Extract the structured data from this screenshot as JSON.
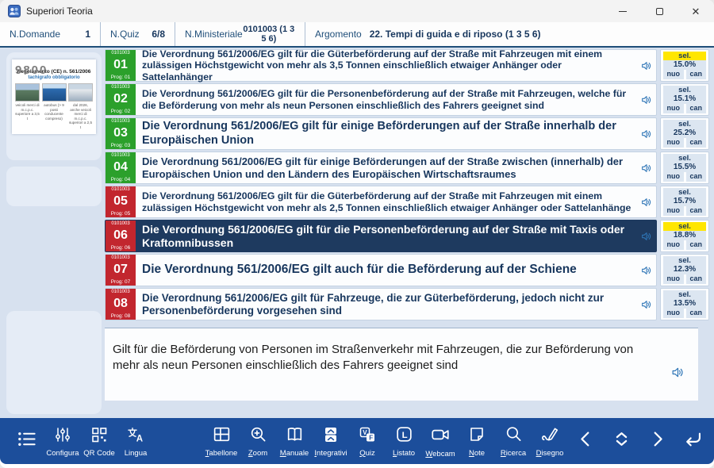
{
  "window": {
    "title": "Superiori Teoria",
    "controls": [
      "minimize",
      "maximize",
      "close"
    ]
  },
  "header": {
    "fields": [
      {
        "label": "N.Domande",
        "value": "1"
      },
      {
        "label": "N.Quiz",
        "value": "6/8"
      },
      {
        "label": "N.Ministeriale",
        "value": "0101003 (1 3 5 6)"
      },
      {
        "label": "Argomento",
        "value": "22. Tempi di guida e di riposo (1 3 5 6)"
      }
    ]
  },
  "sidebar": {
    "image_card": {
      "watermark": "9800",
      "title": "Regolamento (CE) n. 561/2006",
      "subtitle": "tachigrafo obbligatorio",
      "photos": [
        {
          "caption": "veicoli merci di m.c.p.c. superiore a 3,5 t"
        },
        {
          "caption": "autobus (> 9 posti conducente compreso)"
        },
        {
          "caption": "dal 2026, anche veicoli merci di m.c.p.c. superiori a 2,5 t"
        }
      ]
    }
  },
  "colors": {
    "correct_green": "#2ba02b",
    "wrong_red": "#c2262e",
    "selected_row_navy": "#1e3a5f",
    "highlight_yellow": "#ffe600",
    "toolbar_blue": "#1c4e9b",
    "speaker_blue": "#2e75b6"
  },
  "answer_labels": {
    "sel": "sel.",
    "nuo": "nuo",
    "can": "can"
  },
  "questions": [
    {
      "code": "0101003",
      "num": "01",
      "prog": "Prog: 01",
      "badge": "green",
      "selected": false,
      "sel_highlight": true,
      "sel_pct": "15.0%",
      "text": "Die Verordnung 561/2006/EG gilt für die Güterbeförderung auf der Straße mit Fahrzeugen mit einem zulässigen Höchstgewicht von mehr als 3,5 Tonnen einschließlich etwaiger Anhänger oder Sattelanhänger"
    },
    {
      "code": "0101003",
      "num": "02",
      "prog": "Prog: 02",
      "badge": "green",
      "selected": false,
      "sel_highlight": false,
      "sel_pct": "15.1%",
      "text": "Die Verordnung 561/2006/EG gilt für die Personenbeförderung auf der Straße mit Fahrzeugen, welche für die Beförderung von mehr als neun Personen einschließlich des Fahrers geeignet sind"
    },
    {
      "code": "0101003",
      "num": "03",
      "prog": "Prog: 03",
      "badge": "green",
      "selected": false,
      "sel_highlight": false,
      "sel_pct": "25.2%",
      "text": "Die Verordnung 561/2006/EG gilt für einige Beförderungen auf der Straße innerhalb der Europäischen Union"
    },
    {
      "code": "0101003",
      "num": "04",
      "prog": "Prog: 04",
      "badge": "green",
      "selected": false,
      "sel_highlight": false,
      "sel_pct": "15.5%",
      "text": "Die Verordnung 561/2006/EG gilt für einige Beförderungen auf der Straße zwischen (innerhalb) der Europäischen Union und den Ländern des Europäischen Wirtschaftsraumes"
    },
    {
      "code": "0101003",
      "num": "05",
      "prog": "Prog: 05",
      "badge": "red",
      "selected": false,
      "sel_highlight": false,
      "sel_pct": "15.7%",
      "text": "Die Verordnung 561/2006/EG gilt für die Güterbeförderung auf der Straße mit Fahrzeugen mit einem zulässigen Höchstgewicht von mehr als 2,5 Tonnen einschließlich etwaiger Anhänger oder Sattelanhänge"
    },
    {
      "code": "0101003",
      "num": "06",
      "prog": "Prog: 06",
      "badge": "red",
      "selected": true,
      "sel_highlight": true,
      "sel_pct": "18.8%",
      "text": "Die Verordnung 561/2006/EG gilt für die Personenbeförderung auf der Straße mit Taxis oder Kraftomnibussen"
    },
    {
      "code": "0101003",
      "num": "07",
      "prog": "Prog: 07",
      "badge": "red",
      "selected": false,
      "sel_highlight": false,
      "sel_pct": "12.3%",
      "text": "Die Verordnung 561/2006/EG gilt auch für die Beförderung auf der Schiene"
    },
    {
      "code": "0101003",
      "num": "08",
      "prog": "Prog: 08",
      "badge": "red",
      "selected": false,
      "sel_highlight": false,
      "sel_pct": "13.5%",
      "text": "Die Verordnung 561/2006/EG gilt für Fahrzeuge, die zur Güterbeförderung, jedoch nicht zur Personenbeförderung vorgesehen sind"
    }
  ],
  "answer_panel": {
    "text": "Gilt für die Beförderung von Personen im Straßenverkehr mit Fahrzeugen, die zur Beförderung von mehr als neun Personen einschließlich des Fahrers geeignet sind"
  },
  "toolbar": {
    "left": [
      {
        "name": "menu",
        "label": ""
      },
      {
        "name": "configura",
        "label": "Configura"
      },
      {
        "name": "qr-code",
        "label": "QR Code"
      },
      {
        "name": "lingua",
        "label": "Lingua"
      }
    ],
    "center": [
      {
        "name": "tabellone",
        "label": "Tabellone"
      },
      {
        "name": "zoom",
        "label": "Zoom"
      },
      {
        "name": "manuale",
        "label": "Manuale"
      },
      {
        "name": "integrativi",
        "label": "Integrativi"
      },
      {
        "name": "quiz",
        "label": "Quiz"
      },
      {
        "name": "listato",
        "label": "Listato"
      },
      {
        "name": "webcam",
        "label": "Webcam"
      },
      {
        "name": "note",
        "label": "Note"
      },
      {
        "name": "ricerca",
        "label": "Ricerca"
      },
      {
        "name": "disegno",
        "label": "Disegno"
      }
    ],
    "right": [
      {
        "name": "previous"
      },
      {
        "name": "scroll-updown"
      },
      {
        "name": "next"
      },
      {
        "name": "return"
      }
    ]
  }
}
